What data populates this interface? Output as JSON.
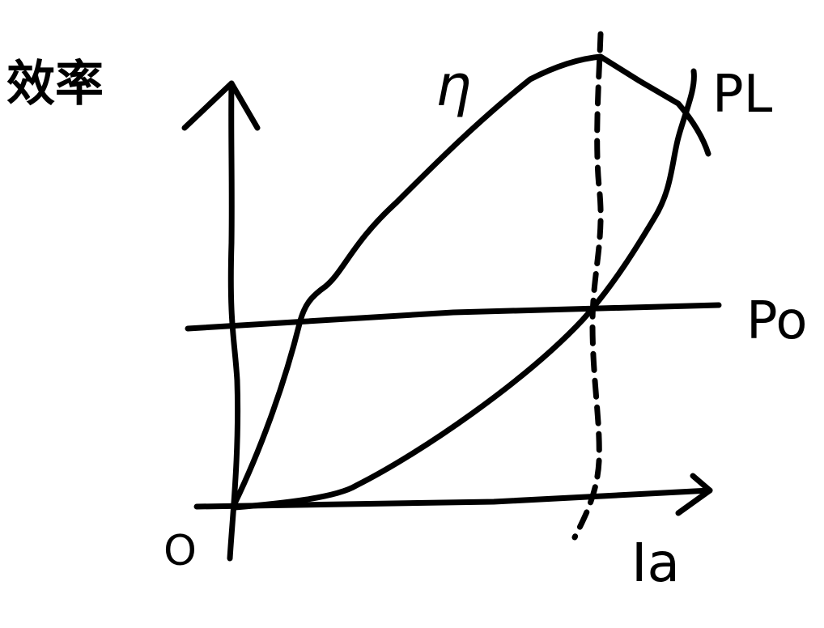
{
  "labels": {
    "y_axis": "效率",
    "x_axis": "Ia",
    "origin": "O",
    "eta_curve": "η",
    "load_loss_curve": "PL",
    "constant_loss_line": "Po"
  }
}
